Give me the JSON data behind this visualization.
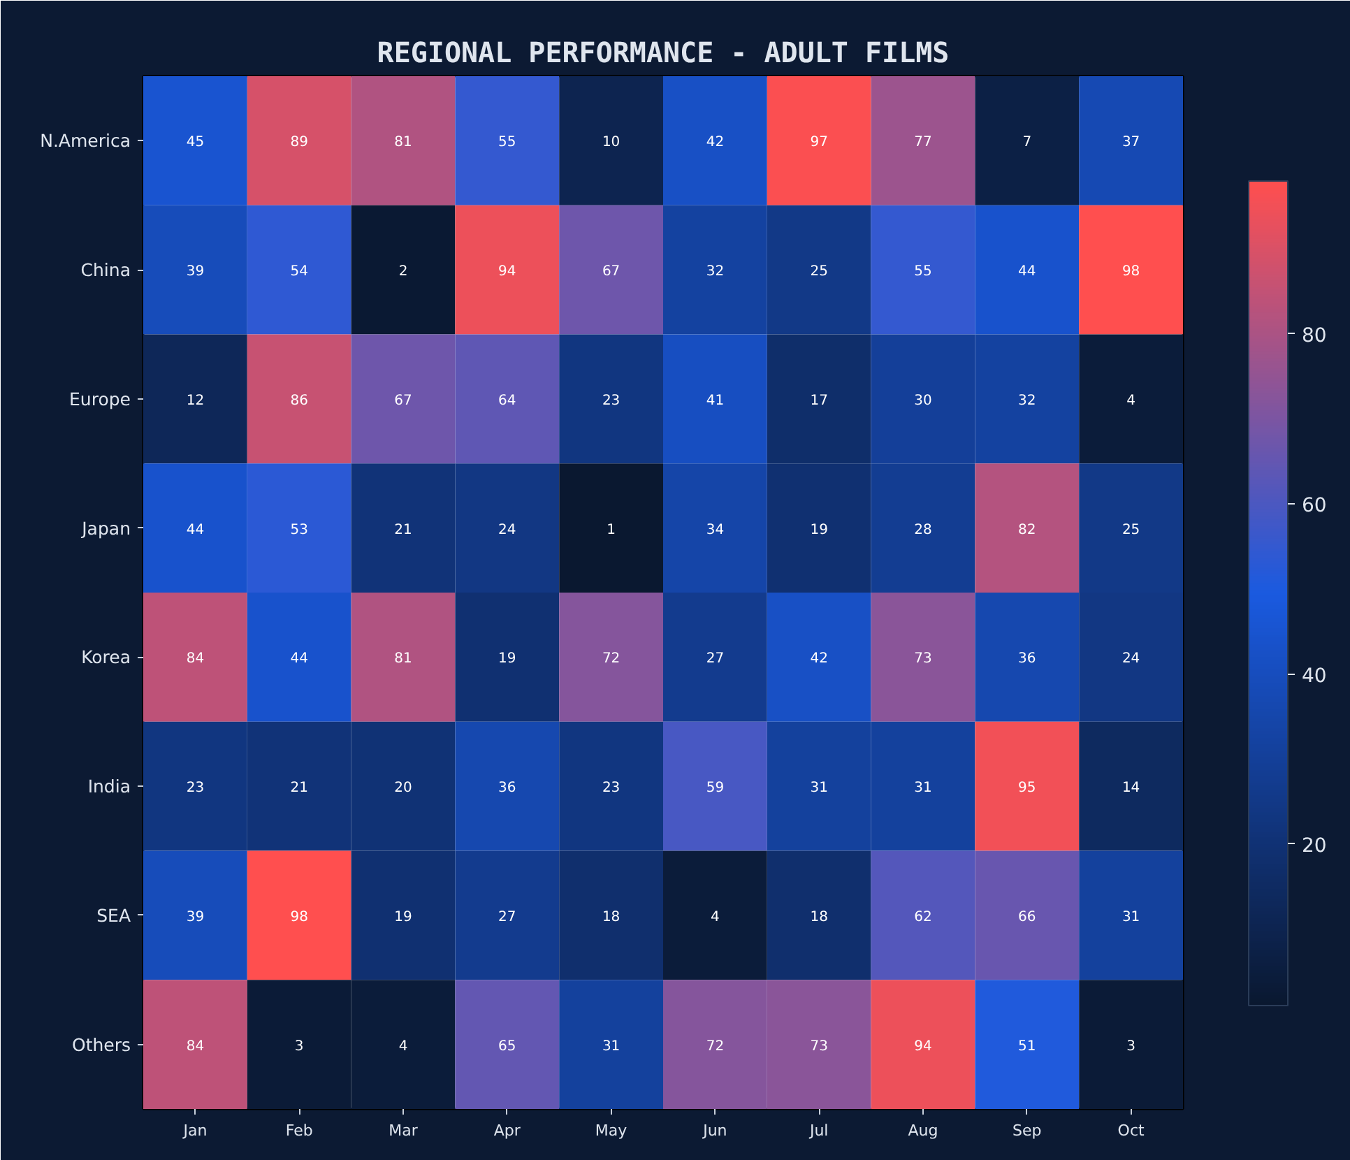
{
  "chart_data": {
    "type": "heatmap",
    "title": "REGIONAL PERFORMANCE - ADULT FILMS",
    "categories": [
      "Jan",
      "Feb",
      "Mar",
      "Apr",
      "May",
      "Jun",
      "Jul",
      "Aug",
      "Sep",
      "Oct"
    ],
    "y_categories": [
      "N.America",
      "China",
      "Europe",
      "Japan",
      "Korea",
      "India",
      "SEA",
      "Others"
    ],
    "cells": [
      [
        45,
        89,
        81,
        55,
        10,
        42,
        97,
        77,
        7,
        37
      ],
      [
        39,
        54,
        2,
        94,
        67,
        32,
        25,
        55,
        44,
        98
      ],
      [
        12,
        86,
        67,
        64,
        23,
        41,
        17,
        30,
        32,
        4
      ],
      [
        44,
        53,
        21,
        24,
        1,
        34,
        19,
        28,
        82,
        25
      ],
      [
        84,
        44,
        81,
        19,
        72,
        27,
        42,
        73,
        36,
        24
      ],
      [
        23,
        21,
        20,
        36,
        23,
        59,
        31,
        31,
        95,
        14
      ],
      [
        39,
        98,
        19,
        27,
        18,
        4,
        18,
        62,
        66,
        31
      ],
      [
        84,
        3,
        4,
        65,
        31,
        72,
        73,
        94,
        51,
        3
      ]
    ],
    "clim": [
      1,
      98
    ],
    "cticks": [
      20,
      40,
      60,
      80
    ],
    "data_labels": true
  }
}
